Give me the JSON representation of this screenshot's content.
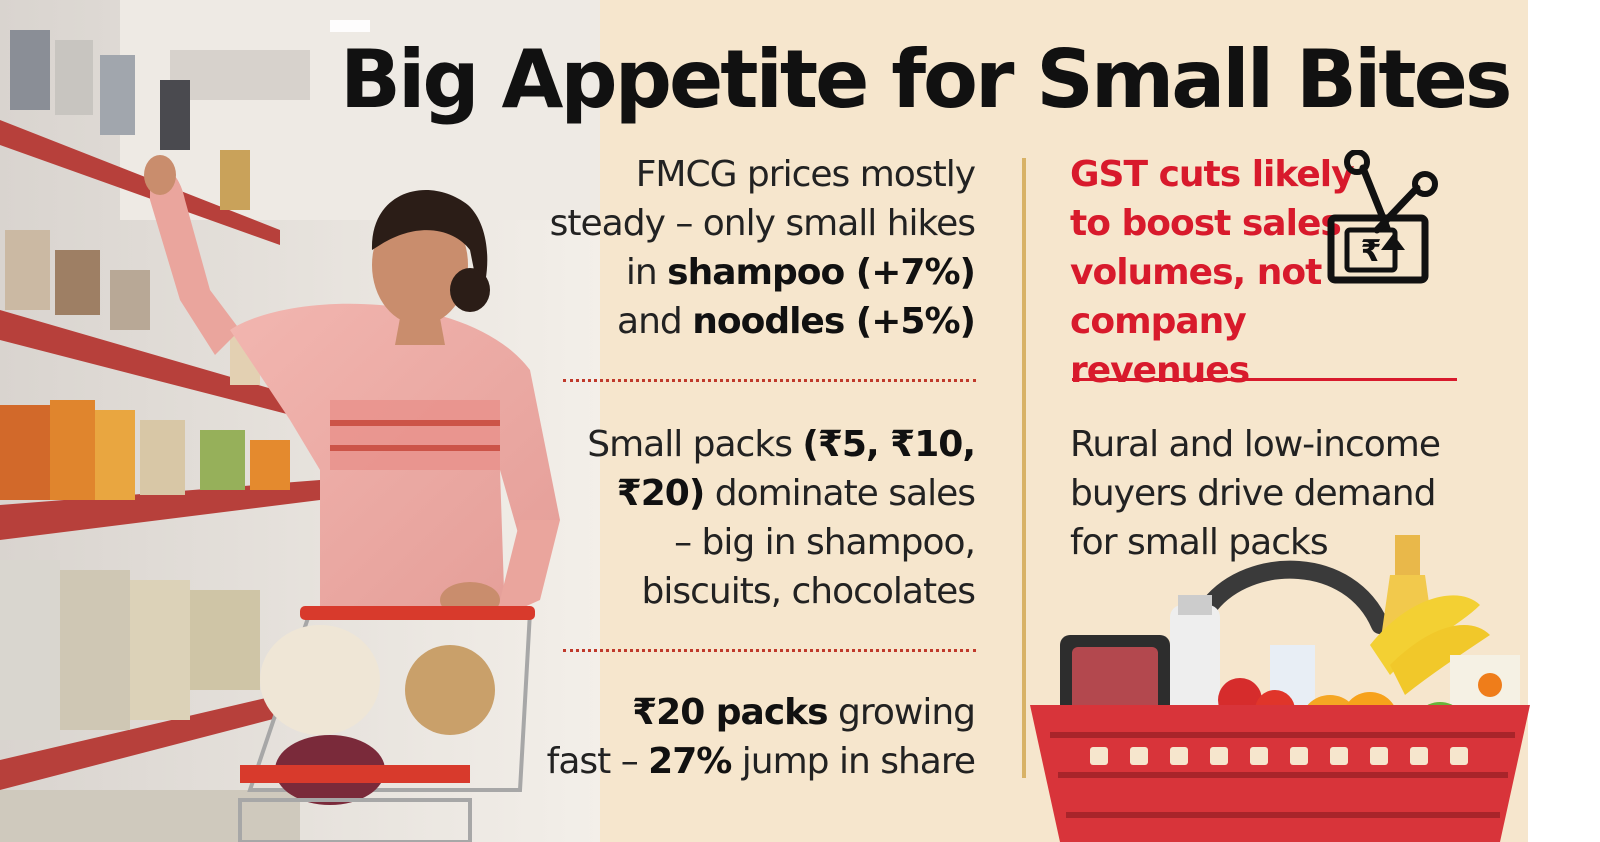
{
  "headline": "Big Appetite for Small Bites",
  "points": {
    "p1": {
      "lines": [
        [
          {
            "t": "FMCG prices mostly",
            "b": false
          }
        ],
        [
          {
            "t": "steady – only small hikes",
            "b": false
          }
        ],
        [
          {
            "t": "in ",
            "b": false
          },
          {
            "t": "shampoo (+7%)",
            "b": true
          }
        ],
        [
          {
            "t": "and ",
            "b": false
          },
          {
            "t": "noodles (+5%)",
            "b": true
          }
        ]
      ]
    },
    "p2": {
      "lines": [
        [
          {
            "t": "Small packs ",
            "b": false
          },
          {
            "t": "(₹5, ₹10,",
            "b": true
          }
        ],
        [
          {
            "t": "₹20)",
            "b": true
          },
          {
            "t": " dominate sales",
            "b": false
          }
        ],
        [
          {
            "t": "– big in shampoo,",
            "b": false
          }
        ],
        [
          {
            "t": "biscuits, chocolates",
            "b": false
          }
        ]
      ]
    },
    "p3": {
      "lines": [
        [
          {
            "t": "₹20 packs",
            "b": true
          },
          {
            "t": " growing",
            "b": false
          }
        ],
        [
          {
            "t": "fast – ",
            "b": false
          },
          {
            "t": "27%",
            "b": true
          },
          {
            "t": " jump in share",
            "b": false
          }
        ]
      ]
    },
    "gst": {
      "lines": [
        "GST cuts likely",
        "to boost sales",
        "volumes, not",
        "company revenues"
      ]
    },
    "rural": {
      "lines": [
        "Rural and low-income",
        "buyers drive demand",
        "for small packs"
      ]
    }
  },
  "icons": {
    "gst_icon": "scissors-cutting-rupee-note-icon",
    "basket": "grocery-basket-illustration",
    "photo": "woman-shopping-in-supermarket-photo"
  },
  "colors": {
    "background": "#f6e6cd",
    "accent_red": "#d81a2c",
    "divider_gold": "#d8b266"
  }
}
